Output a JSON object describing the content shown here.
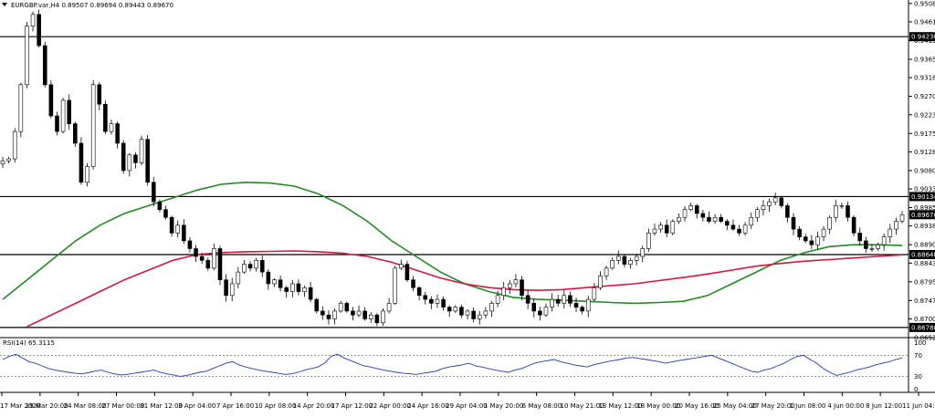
{
  "header": {
    "symbol_line": "EURGBP.var,H4  0.89507 0.89694 0.89443 0.89670"
  },
  "rsi_panel": {
    "label": "RSI(14) 65.3115",
    "levels": [
      30,
      70
    ],
    "axis_labels": [
      "100",
      "70",
      "30",
      "0"
    ],
    "values": [
      62,
      68,
      72,
      65,
      58,
      55,
      50,
      45,
      42,
      40,
      38,
      36,
      35,
      37,
      40,
      42,
      38,
      35,
      33,
      34,
      36,
      38,
      40,
      42,
      38,
      35,
      33,
      30,
      32,
      35,
      38,
      40,
      45,
      50,
      55,
      58,
      52,
      48,
      45,
      42,
      40,
      38,
      36,
      34,
      35,
      38,
      42,
      45,
      48,
      55,
      68,
      72,
      65,
      60,
      55,
      50,
      48,
      45,
      42,
      40,
      38,
      36,
      35,
      34,
      36,
      38,
      40,
      45,
      48,
      50,
      52,
      55,
      50,
      48,
      45,
      42,
      40,
      38,
      42,
      45,
      50,
      55,
      58,
      60,
      62,
      58,
      55,
      52,
      50,
      48,
      52,
      55,
      58,
      60,
      62,
      65,
      66,
      64,
      62,
      60,
      58,
      55,
      58,
      60,
      62,
      64,
      66,
      68,
      70,
      65,
      60,
      55,
      50,
      45,
      40,
      38,
      42,
      45,
      50,
      55,
      62,
      68,
      70,
      62,
      55,
      45,
      38,
      32,
      35,
      38,
      42,
      45,
      48,
      52,
      55,
      58,
      62,
      65
    ]
  },
  "chart_data": {
    "type": "candlestick",
    "symbol": "EURGBP.var",
    "timeframe": "H4",
    "ohlc_header": {
      "open": 0.89507,
      "high": 0.89694,
      "low": 0.89443,
      "close": 0.8967
    },
    "ylim": [
      0.8652,
      0.9517
    ],
    "y_tick_labels": [
      "0.95080",
      "0.94610",
      "0.94130",
      "0.93650",
      "0.93180",
      "0.92700",
      "0.92230",
      "0.91750",
      "0.91280",
      "0.90800",
      "0.90330",
      "0.89850",
      "0.89380",
      "0.88900",
      "0.88430",
      "0.87950",
      "0.87470",
      "0.87000",
      "0.86520"
    ],
    "x_tick_labels": [
      "17 Mar 2020",
      "19 Mar 20:00",
      "24 Mar 08:00",
      "27 Mar 00:00",
      "31 Mar 12:00",
      "3 Apr 04:00",
      "7 Apr 16:00",
      "10 Apr 08:00",
      "14 Apr 20:00",
      "17 Apr 12:00",
      "22 Apr 00:00",
      "24 Apr 16:00",
      "29 Apr 04:00",
      "1 May 20:00",
      "6 May 08:00",
      "10 May 21:00",
      "13 May 12:00",
      "18 May 00:00",
      "20 May 16:00",
      "25 May 04:00",
      "27 May 20:00",
      "1 Jun 08:00",
      "4 Jun 00:00",
      "8 Jun 12:00",
      "11 Jun 04:00"
    ],
    "horizontal_levels": [
      {
        "value": 0.9423,
        "label": "0.94230"
      },
      {
        "value": 0.90134,
        "label": "0.90134"
      },
      {
        "value": 0.88648,
        "label": "0.88648"
      },
      {
        "value": 0.8678,
        "label": "0.86780"
      }
    ],
    "current_price": {
      "value": 0.8967,
      "label": "0.89670"
    },
    "close_path": [
      0.9105,
      0.911,
      0.918,
      0.93,
      0.945,
      0.948,
      0.94,
      0.93,
      0.922,
      0.918,
      0.926,
      0.92,
      0.915,
      0.905,
      0.909,
      0.93,
      0.925,
      0.918,
      0.92,
      0.915,
      0.908,
      0.912,
      0.91,
      0.916,
      0.905,
      0.9,
      0.898,
      0.896,
      0.892,
      0.894,
      0.89,
      0.888,
      0.886,
      0.885,
      0.883,
      0.888,
      0.88,
      0.876,
      0.879,
      0.882,
      0.884,
      0.883,
      0.885,
      0.882,
      0.879,
      0.88,
      0.878,
      0.877,
      0.879,
      0.877,
      0.878,
      0.875,
      0.872,
      0.871,
      0.87,
      0.872,
      0.874,
      0.872,
      0.871,
      0.872,
      0.87,
      0.871,
      0.869,
      0.872,
      0.874,
      0.883,
      0.884,
      0.88,
      0.878,
      0.876,
      0.875,
      0.874,
      0.875,
      0.873,
      0.872,
      0.873,
      0.871,
      0.872,
      0.87,
      0.871,
      0.872,
      0.874,
      0.876,
      0.878,
      0.879,
      0.88,
      0.876,
      0.874,
      0.872,
      0.871,
      0.873,
      0.875,
      0.874,
      0.876,
      0.874,
      0.873,
      0.872,
      0.875,
      0.878,
      0.881,
      0.883,
      0.885,
      0.886,
      0.884,
      0.885,
      0.886,
      0.888,
      0.892,
      0.893,
      0.894,
      0.892,
      0.895,
      0.896,
      0.898,
      0.899,
      0.897,
      0.896,
      0.895,
      0.896,
      0.895,
      0.894,
      0.893,
      0.892,
      0.894,
      0.896,
      0.898,
      0.899,
      0.9,
      0.901,
      0.899,
      0.896,
      0.893,
      0.891,
      0.89,
      0.889,
      0.891,
      0.893,
      0.896,
      0.899,
      0.899,
      0.896,
      0.892,
      0.89,
      0.888,
      0.888,
      0.889,
      0.891,
      0.893,
      0.895,
      0.8967
    ],
    "series": [
      {
        "name": "",
        "color": "#228b22",
        "values": [
          0.875,
          0.88,
          0.885,
          0.89,
          0.894,
          0.897,
          0.899,
          0.901,
          0.903,
          0.9045,
          0.905,
          0.9048,
          0.904,
          0.902,
          0.899,
          0.895,
          0.89,
          0.886,
          0.882,
          0.879,
          0.877,
          0.8755,
          0.875,
          0.8748,
          0.8745,
          0.8742,
          0.874,
          0.8742,
          0.8745,
          0.876,
          0.879,
          0.882,
          0.885,
          0.887,
          0.8885,
          0.889,
          0.889,
          0.8888
        ]
      },
      {
        "name": "",
        "color": "#dc143c",
        "values": [
          0.865,
          0.868,
          0.871,
          0.874,
          0.877,
          0.88,
          0.8825,
          0.885,
          0.8865,
          0.887,
          0.8872,
          0.8873,
          0.8874,
          0.8872,
          0.8868,
          0.886,
          0.8845,
          0.8825,
          0.8805,
          0.879,
          0.878,
          0.8775,
          0.8773,
          0.8775,
          0.878,
          0.8785,
          0.879,
          0.8798,
          0.8806,
          0.8815,
          0.8825,
          0.8835,
          0.8842,
          0.8848,
          0.8852,
          0.8856,
          0.886,
          0.8864
        ]
      }
    ],
    "grid": false,
    "background": "#ffffff",
    "candle_colors": {
      "up": "#ffffff",
      "down": "#000000",
      "outline": "#000000"
    }
  }
}
